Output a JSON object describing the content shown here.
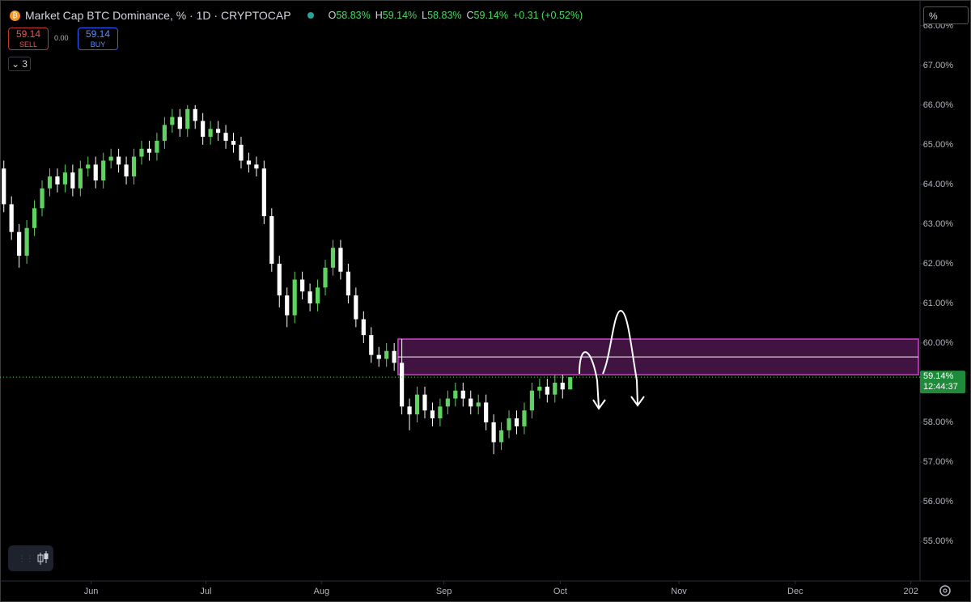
{
  "header": {
    "title": "Market Cap BTC Dominance, % · 1D · CRYPTOCAP",
    "o_label": "O",
    "o": "58.83%",
    "h_label": "H",
    "h": "59.14%",
    "l_label": "L",
    "l": "58.83%",
    "c_label": "C",
    "c": "59.14%",
    "change": "+0.31 (+0.52%)",
    "icon": "₿"
  },
  "trade": {
    "sell_price": "59.14",
    "sell": "SELL",
    "spread": "0.00",
    "buy_price": "59.14",
    "buy": "BUY",
    "indicators": "3",
    "scale_mode": "%"
  },
  "chart_data": {
    "type": "candlestick",
    "categories": [
      null,
      null,
      null,
      null,
      null,
      null,
      null,
      null,
      null,
      null,
      null,
      null,
      null,
      null,
      null,
      null,
      null,
      null,
      null,
      null,
      null,
      null,
      null,
      null,
      null,
      null,
      null,
      null,
      null,
      null,
      null,
      null,
      null,
      null,
      null,
      null,
      null,
      null,
      null,
      null,
      null,
      null,
      null,
      null,
      null,
      null,
      null,
      null,
      null,
      null,
      null,
      null,
      null,
      null,
      null,
      null,
      null,
      null,
      null,
      null,
      null,
      null,
      null,
      null,
      null,
      null,
      null,
      null,
      null,
      null,
      null,
      null,
      null,
      null,
      null
    ],
    "open": [
      64.4,
      63.5,
      62.8,
      62.2,
      62.9,
      63.4,
      63.9,
      64.2,
      64.0,
      64.3,
      63.9,
      64.4,
      64.5,
      64.1,
      64.6,
      64.7,
      64.5,
      64.2,
      64.7,
      64.9,
      64.8,
      65.1,
      65.5,
      65.7,
      65.4,
      65.9,
      65.6,
      65.2,
      65.4,
      65.3,
      65.1,
      65.0,
      64.6,
      64.5,
      64.4,
      63.2,
      62.0,
      61.2,
      60.7,
      61.6,
      61.3,
      61.0,
      61.4,
      61.9,
      62.4,
      61.8,
      61.2,
      60.6,
      60.2,
      59.7,
      59.6,
      59.8,
      59.5,
      58.4,
      58.2,
      58.7,
      58.3,
      58.1,
      58.4,
      58.6,
      58.8,
      58.6,
      58.4,
      58.5,
      58.0,
      57.5,
      57.8,
      58.1,
      57.9,
      58.3,
      58.8,
      58.9,
      58.7,
      59.0,
      58.83
    ],
    "high": [
      64.6,
      63.7,
      63.0,
      63.1,
      63.6,
      64.1,
      64.4,
      64.4,
      64.5,
      64.5,
      64.6,
      64.7,
      64.7,
      64.8,
      64.9,
      64.9,
      64.7,
      64.9,
      65.1,
      65.1,
      65.3,
      65.7,
      65.9,
      65.9,
      66.0,
      66.0,
      65.8,
      65.6,
      65.6,
      65.5,
      65.3,
      65.2,
      64.8,
      64.7,
      64.6,
      63.4,
      62.2,
      61.4,
      61.8,
      61.8,
      61.5,
      61.6,
      62.1,
      62.6,
      62.6,
      62.0,
      61.4,
      60.8,
      60.4,
      59.9,
      60.0,
      60.0,
      60.1,
      58.6,
      58.9,
      58.9,
      58.5,
      58.6,
      58.8,
      59.0,
      59.0,
      58.8,
      58.7,
      58.7,
      58.2,
      58.0,
      58.3,
      58.3,
      58.5,
      59.0,
      59.1,
      59.1,
      59.2,
      59.2,
      59.14
    ],
    "low": [
      63.3,
      62.6,
      61.9,
      62.0,
      62.7,
      63.2,
      63.7,
      63.8,
      63.8,
      63.7,
      63.7,
      64.2,
      63.9,
      63.9,
      64.4,
      64.3,
      64.0,
      64.0,
      64.5,
      64.6,
      64.6,
      64.9,
      65.3,
      65.2,
      65.2,
      65.4,
      65.0,
      65.0,
      65.1,
      64.9,
      64.8,
      64.4,
      64.3,
      64.2,
      63.0,
      61.8,
      60.9,
      60.4,
      60.5,
      61.1,
      60.8,
      60.8,
      61.2,
      61.7,
      61.6,
      61.0,
      60.4,
      60.0,
      59.5,
      59.4,
      59.4,
      59.3,
      58.2,
      57.8,
      58.0,
      58.1,
      57.9,
      57.9,
      58.2,
      58.4,
      58.4,
      58.2,
      58.2,
      57.8,
      57.2,
      57.3,
      57.6,
      57.7,
      57.7,
      58.1,
      58.6,
      58.5,
      58.5,
      58.6,
      58.83
    ],
    "close": [
      63.5,
      62.8,
      62.2,
      62.9,
      63.4,
      63.9,
      64.2,
      64.0,
      64.3,
      63.9,
      64.4,
      64.5,
      64.1,
      64.6,
      64.7,
      64.5,
      64.2,
      64.7,
      64.9,
      64.8,
      65.1,
      65.5,
      65.7,
      65.4,
      65.9,
      65.6,
      65.2,
      65.4,
      65.3,
      65.1,
      65.0,
      64.6,
      64.5,
      64.4,
      63.2,
      62.0,
      61.2,
      60.7,
      61.6,
      61.3,
      61.0,
      61.4,
      61.9,
      62.4,
      61.8,
      61.2,
      60.6,
      60.2,
      59.7,
      59.6,
      59.8,
      59.5,
      58.4,
      58.2,
      58.7,
      58.3,
      58.1,
      58.4,
      58.6,
      58.8,
      58.6,
      58.4,
      58.5,
      58.0,
      57.5,
      57.8,
      58.1,
      57.9,
      58.3,
      58.8,
      58.9,
      58.7,
      59.0,
      58.83,
      59.14
    ],
    "up_color": "#5fd35f",
    "down_color": "#ffffff",
    "xlim": [
      -0.5,
      119.7
    ],
    "xticks": [
      {
        "value": 11.4,
        "label": "Jun"
      },
      {
        "value": 26.4,
        "label": "Jul"
      },
      {
        "value": 41.5,
        "label": "Aug"
      },
      {
        "value": 57.5,
        "label": "Sep"
      },
      {
        "value": 72.7,
        "label": "Oct"
      },
      {
        "value": 88.2,
        "label": "Nov"
      },
      {
        "value": 103.4,
        "label": "Dec"
      },
      {
        "value": 118.5,
        "label": "202"
      }
    ],
    "ylim": [
      54.0,
      68.65
    ],
    "yticks": [
      {
        "value": 55,
        "label": "55.00%"
      },
      {
        "value": 56,
        "label": "56.00%"
      },
      {
        "value": 57,
        "label": "57.00%"
      },
      {
        "value": 58,
        "label": "58.00%"
      },
      {
        "value": 59,
        "label": "59.00%"
      },
      {
        "value": 60,
        "label": "60.00%"
      },
      {
        "value": 61,
        "label": "61.00%"
      },
      {
        "value": 62,
        "label": "62.00%"
      },
      {
        "value": 63,
        "label": "63.00%"
      },
      {
        "value": 64,
        "label": "64.00%"
      },
      {
        "value": 65,
        "label": "65.00%"
      },
      {
        "value": 66,
        "label": "66.00%"
      },
      {
        "value": 67,
        "label": "67.00%"
      },
      {
        "value": 68,
        "label": "68.00%"
      }
    ],
    "last_price_label": "59.14%",
    "countdown": "12:44:37",
    "zone": {
      "top": 60.1,
      "bottom": 59.2,
      "mid": 59.65,
      "x_start": 51.5,
      "color": "#d43fd4"
    }
  }
}
